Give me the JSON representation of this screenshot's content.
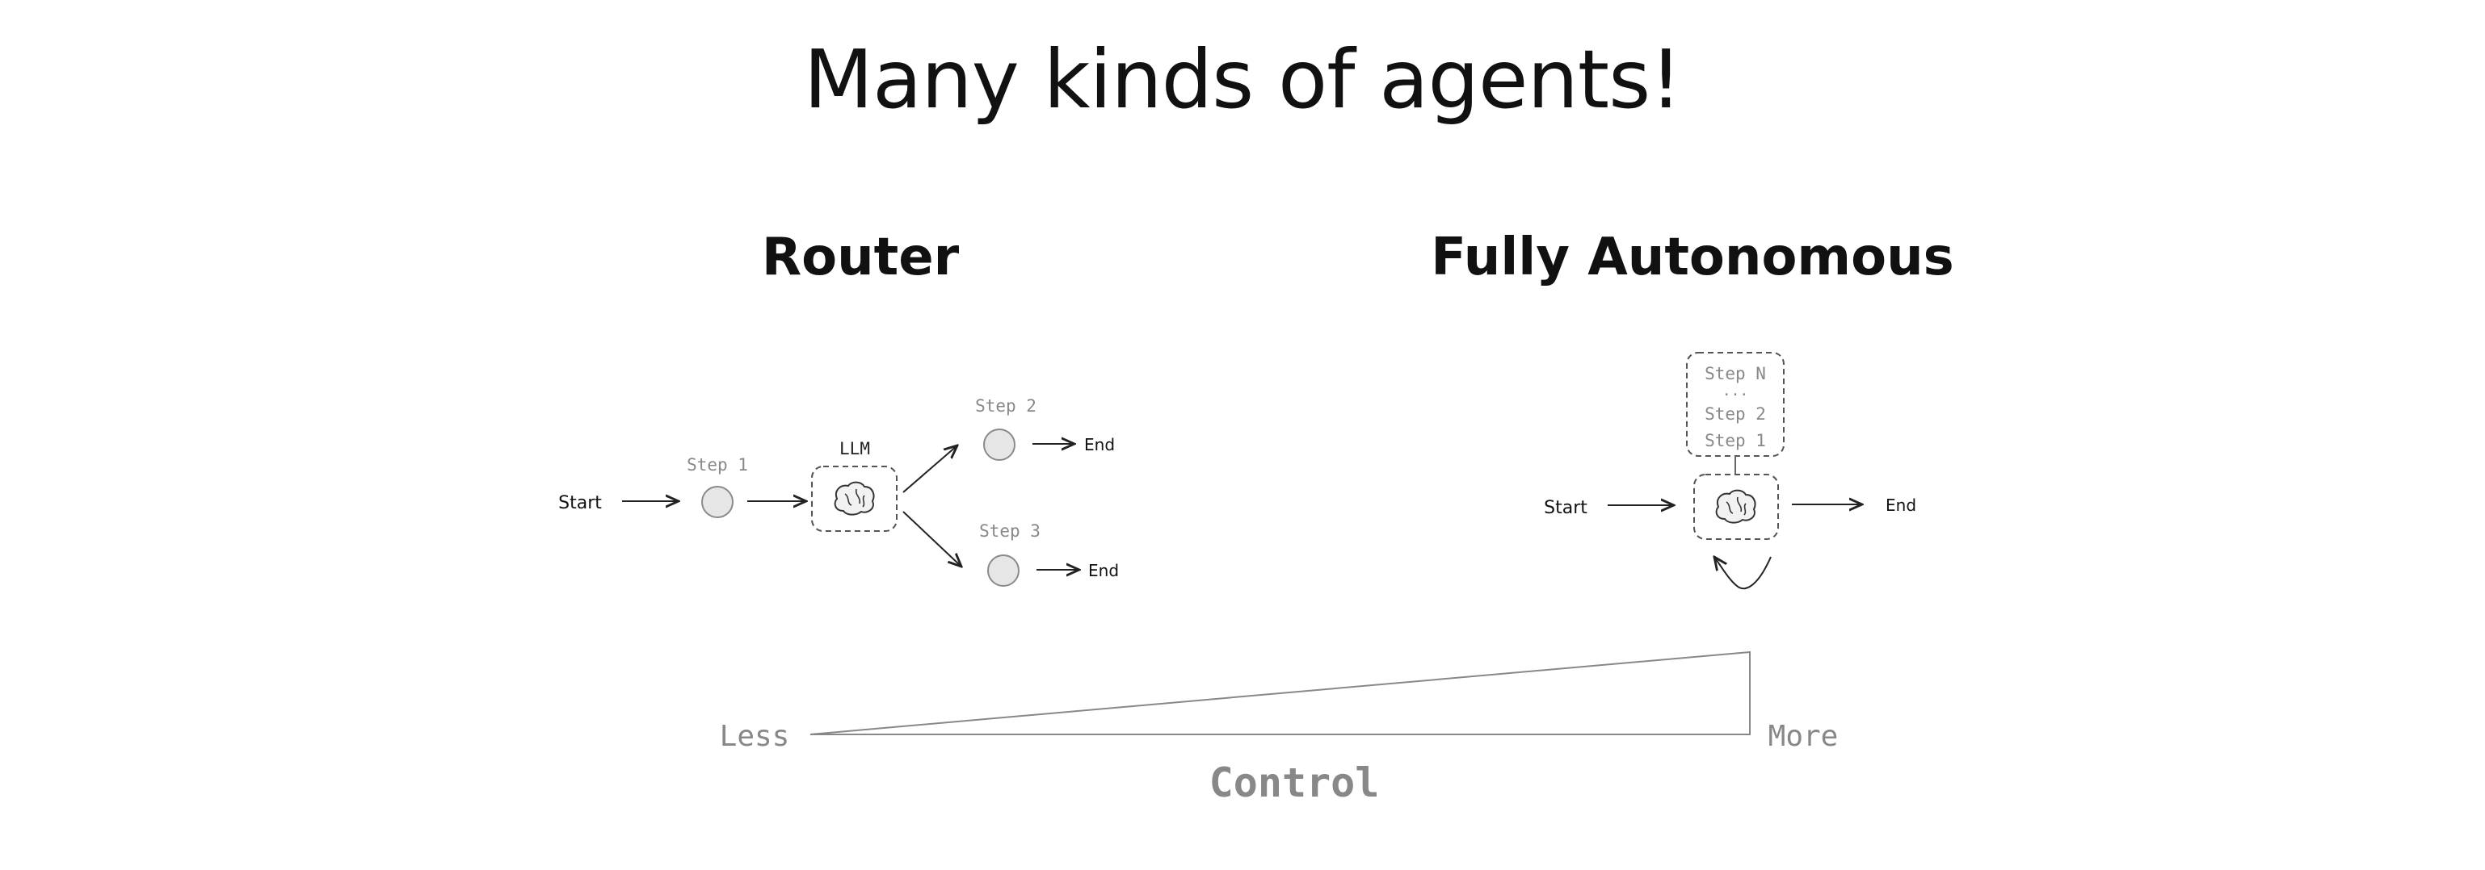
{
  "title": "Many kinds of agents!",
  "router": {
    "heading": "Router",
    "start_label": "Start",
    "step1_label": "Step 1",
    "llm_label": "LLM",
    "step2_label": "Step 2",
    "step3_label": "Step 3",
    "end_label_top": "End",
    "end_label_bottom": "End",
    "brain_icon": "brain-icon"
  },
  "autonomous": {
    "heading": "Fully Autonomous",
    "start_label": "Start",
    "end_label": "End",
    "stack_top": "Step N",
    "stack_ellipsis": "...",
    "stack_mid": "Step 2",
    "stack_bottom": "Step 1",
    "brain_icon": "brain-icon",
    "loop_icon": "loop-arrow-icon"
  },
  "control_scale": {
    "less_label": "Less",
    "more_label": "More",
    "axis_label": "Control"
  },
  "colors": {
    "ink": "#111111",
    "muted": "#888888",
    "node_fill": "#e6e6e6",
    "node_stroke": "#8a8a8a"
  }
}
